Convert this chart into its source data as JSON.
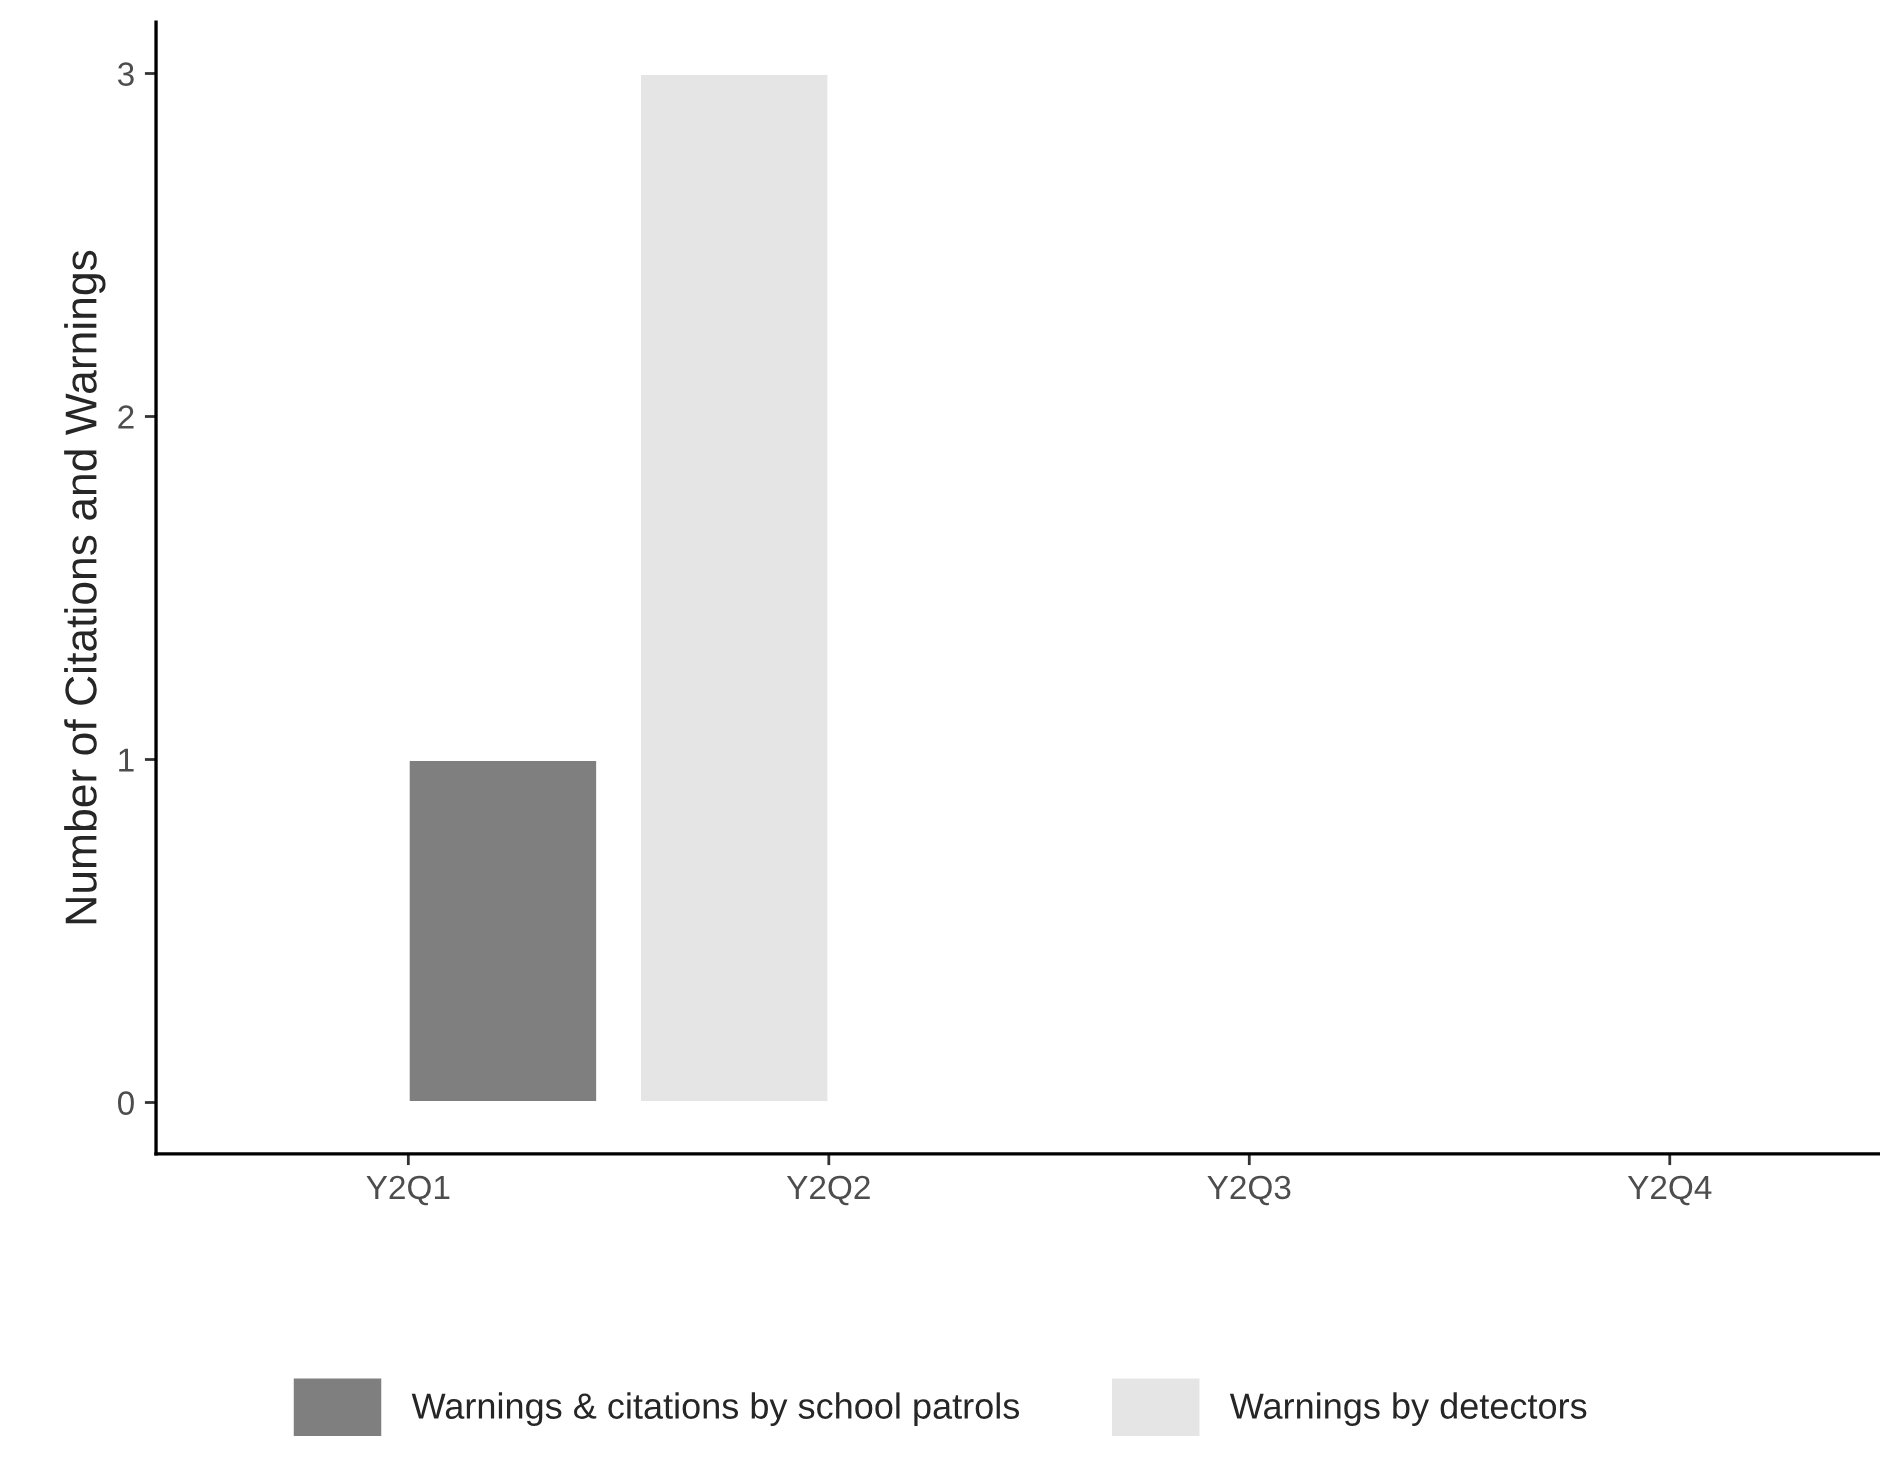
{
  "chart_data": {
    "type": "bar",
    "ylabel": "Number of Citations and Warnings",
    "categories": [
      "Y2Q1",
      "Y2Q2",
      "Y2Q3",
      "Y2Q4"
    ],
    "series": [
      {
        "name": "Warnings & citations by school patrols",
        "color": "#7f7f7f",
        "values": [
          1,
          null,
          null,
          null
        ]
      },
      {
        "name": "Warnings by detectors",
        "color": "#e5e5e5",
        "values": [
          null,
          3,
          null,
          null
        ]
      }
    ],
    "ylim": [
      -0.15,
      3.15
    ],
    "yticks": [
      0,
      1,
      2,
      3
    ],
    "grid": false,
    "legend": "bottom"
  }
}
